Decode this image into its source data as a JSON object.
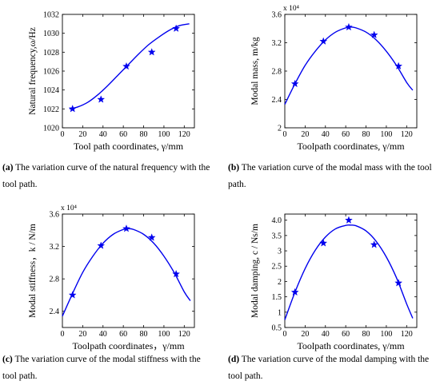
{
  "chart_data": [
    {
      "type": "line",
      "xlabel": "Tool path coordinates, γ/mm",
      "ylabel": "Natural frequency,ω/Hz",
      "xticks": [
        0,
        20,
        40,
        60,
        80,
        100,
        120
      ],
      "yticks": [
        1020,
        1022,
        1024,
        1026,
        1028,
        1030,
        1032
      ],
      "xlim": [
        0,
        130
      ],
      "ylim": [
        1020,
        1032
      ],
      "exponent_label": "",
      "grid": false,
      "series": [
        {
          "kind": "markers",
          "marker": "star",
          "x": [
            10,
            38,
            63,
            88,
            112
          ],
          "y": [
            1022.0,
            1023.0,
            1026.5,
            1028.0,
            1030.5
          ]
        },
        {
          "kind": "line",
          "x": [
            7,
            15,
            25,
            35,
            45,
            55,
            65,
            75,
            85,
            95,
            105,
            115,
            125
          ],
          "y": [
            1022.0,
            1022.2,
            1022.7,
            1023.5,
            1024.5,
            1025.6,
            1026.7,
            1027.8,
            1028.8,
            1029.6,
            1030.3,
            1030.8,
            1031.0
          ]
        }
      ],
      "caption_label": "(a)",
      "caption_text": "The variation curve of the natural frequency with the tool path."
    },
    {
      "type": "line",
      "xlabel": "Toolpath coordinates, γ/mm",
      "ylabel": "Modal mass, m/kg",
      "xticks": [
        0,
        20,
        40,
        60,
        80,
        100,
        120
      ],
      "yticks": [
        2,
        2.4,
        2.8,
        3.2,
        3.6
      ],
      "ytick_labels": [
        "2",
        "2.4",
        "2.8",
        "3.2",
        "3.6"
      ],
      "xlim": [
        0,
        130
      ],
      "ylim": [
        2,
        3.6
      ],
      "exponent_label": "x 10⁴",
      "grid": false,
      "series": [
        {
          "kind": "markers",
          "marker": "star",
          "x": [
            10,
            38,
            63,
            88,
            112
          ],
          "y": [
            2.62,
            3.22,
            3.42,
            3.31,
            2.87
          ]
        },
        {
          "kind": "line",
          "x": [
            0,
            10,
            20,
            30,
            40,
            50,
            60,
            65,
            70,
            80,
            90,
            100,
            110,
            120,
            126
          ],
          "y": [
            2.33,
            2.62,
            2.88,
            3.08,
            3.24,
            3.35,
            3.41,
            3.42,
            3.41,
            3.35,
            3.24,
            3.08,
            2.88,
            2.64,
            2.53
          ]
        }
      ],
      "caption_label": "(b)",
      "caption_text": "The variation curve of the modal mass with the tool path."
    },
    {
      "type": "line",
      "xlabel": "Toolpath coordinates，γ/mm",
      "ylabel": "Modal stiffness，k / N/m",
      "xticks": [
        0,
        20,
        40,
        60,
        80,
        100,
        120
      ],
      "yticks": [
        2.4,
        2.8,
        3.2,
        3.6
      ],
      "ytick_labels": [
        "2.4",
        "2.8",
        "3.2",
        "3.6"
      ],
      "xlim": [
        0,
        130
      ],
      "ylim": [
        2.2,
        3.6
      ],
      "exponent_label": "x 10⁴",
      "grid": false,
      "series": [
        {
          "kind": "markers",
          "marker": "star",
          "x": [
            10,
            38,
            63,
            88,
            112
          ],
          "y": [
            2.6,
            3.21,
            3.42,
            3.31,
            2.86
          ]
        },
        {
          "kind": "line",
          "x": [
            0,
            10,
            20,
            30,
            40,
            50,
            60,
            65,
            70,
            80,
            90,
            100,
            110,
            120,
            126
          ],
          "y": [
            2.34,
            2.62,
            2.88,
            3.08,
            3.24,
            3.35,
            3.41,
            3.42,
            3.41,
            3.35,
            3.24,
            3.08,
            2.88,
            2.64,
            2.53
          ]
        }
      ],
      "caption_label": "(c)",
      "caption_text": "The variation curve of the modal stiffness with the tool path."
    },
    {
      "type": "line",
      "xlabel": "Toolpath coordinates, γ/mm",
      "ylabel": "Modal damping, c / Ns/m",
      "xticks": [
        0,
        20,
        40,
        60,
        80,
        100,
        120
      ],
      "yticks": [
        0.5,
        1,
        1.5,
        2,
        2.5,
        3,
        3.5,
        4
      ],
      "ytick_labels": [
        "0.5",
        "1",
        "1.5",
        "2",
        "2.5",
        "3",
        "3.5",
        "4.0"
      ],
      "xlim": [
        0,
        130
      ],
      "ylim": [
        0.5,
        4.2
      ],
      "exponent_label": "",
      "grid": false,
      "series": [
        {
          "kind": "markers",
          "marker": "star",
          "x": [
            10,
            38,
            63,
            88,
            112
          ],
          "y": [
            1.65,
            3.25,
            4.0,
            3.2,
            1.95
          ]
        },
        {
          "kind": "line",
          "x": [
            0,
            10,
            20,
            30,
            40,
            50,
            60,
            65,
            70,
            80,
            90,
            100,
            110,
            120,
            126
          ],
          "y": [
            0.75,
            1.65,
            2.42,
            3.02,
            3.45,
            3.72,
            3.83,
            3.84,
            3.82,
            3.65,
            3.31,
            2.8,
            2.12,
            1.27,
            0.8
          ]
        }
      ],
      "caption_label": "(d)",
      "caption_text": "The variation curve of the modal damping with the tool path."
    }
  ]
}
